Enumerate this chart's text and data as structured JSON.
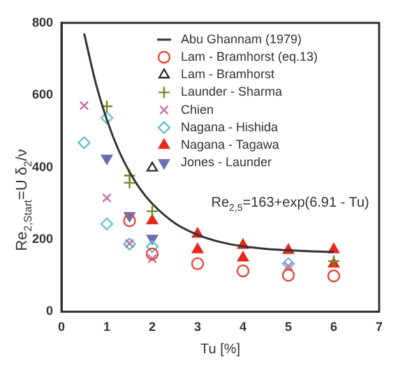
{
  "chart_data": {
    "type": "scatter",
    "xlabel": "Tu [%]",
    "ylabel": "Re$_{2,Start}$=U δ$_{2}$/ν",
    "annotations": [
      "Re$_{2,5}$=163+exp(6.91 - Tu)"
    ],
    "xlim": [
      0,
      7
    ],
    "xticks": [
      0,
      1,
      2,
      3,
      4,
      5,
      6,
      7
    ],
    "ylim": [
      0,
      800
    ],
    "yticks": [
      0,
      200,
      400,
      600,
      800
    ],
    "grid": false,
    "legend": "top right",
    "series": [
      {
        "name": "Abu Ghannam (1979)",
        "type": "line",
        "marker": "none",
        "color": "#333333",
        "x": [
          0.5,
          0.75,
          1,
          1.25,
          1.5,
          1.75,
          2,
          2.5,
          3,
          3.5,
          4,
          4.5,
          5,
          5.5,
          6
        ],
        "values": [
          771,
          636,
          532,
          450,
          387,
          337,
          299,
          245,
          213,
          193,
          181,
          174,
          170,
          167,
          165
        ]
      },
      {
        "name": "Lam - Bramhorst (eq.13)",
        "marker": "circle",
        "color": "#e8473a",
        "x": [
          1.5,
          2,
          3,
          4,
          5,
          6
        ],
        "values": [
          252,
          160,
          133,
          113,
          101,
          99
        ]
      },
      {
        "name": "Lam - Bramhorst",
        "marker": "triangle",
        "color": "#333333",
        "x": [
          2
        ],
        "values": [
          398
        ]
      },
      {
        "name": "Launder - Sharma",
        "marker": "cross",
        "color": "#6b8e23",
        "x": [
          1,
          1.5,
          1.5,
          2,
          6
        ],
        "values": [
          569,
          377,
          357,
          278,
          140
        ]
      },
      {
        "name": "Chien",
        "marker": "x",
        "color": "#c46fa8",
        "x": [
          0.5,
          1,
          1.5,
          2,
          5
        ],
        "values": [
          571,
          315,
          189,
          147,
          126
        ]
      },
      {
        "name": "Nagana - Hishida",
        "marker": "diamond",
        "color": "#66c2d0",
        "x": [
          0.5,
          1,
          1,
          1.5,
          2,
          5
        ],
        "values": [
          468,
          537,
          243,
          187,
          180,
          133
        ]
      },
      {
        "name": "Nagana - Tagawa",
        "marker": "triangle",
        "color": "#e8281e",
        "x": [
          2,
          3,
          3,
          4,
          4,
          5,
          6,
          6
        ],
        "values": [
          252,
          215,
          172,
          184,
          149,
          170,
          172,
          132
        ]
      },
      {
        "name": "Jones - Launder",
        "marker": "triangle",
        "color": "#6a6fb0",
        "x": [
          1,
          1.5,
          2
        ],
        "values": [
          425,
          266,
          203
        ]
      }
    ]
  }
}
